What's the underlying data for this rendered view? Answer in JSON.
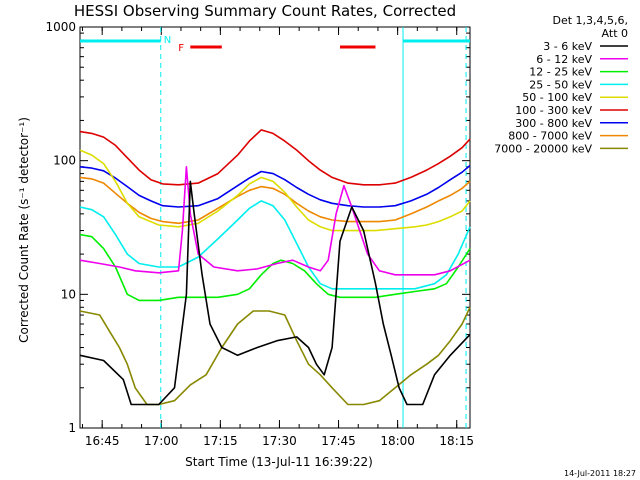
{
  "chart_data": {
    "type": "line",
    "title": "HESSI Observing Summary Count Rates, Corrected",
    "xlabel": "Start Time (13-Jul-11 16:39:22)",
    "ylabel": "Corrected Count Rate (s⁻¹ detector⁻¹)",
    "y_scale": "log",
    "ylim": [
      1,
      1000
    ],
    "xlim_minutes_after_start": [
      0,
      99
    ],
    "x_ticks": [
      {
        "label": "16:45",
        "minute": 5.63
      },
      {
        "label": "17:00",
        "minute": 20.63
      },
      {
        "label": "17:15",
        "minute": 35.63
      },
      {
        "label": "17:30",
        "minute": 50.63
      },
      {
        "label": "17:45",
        "minute": 65.63
      },
      {
        "label": "18:00",
        "minute": 80.63
      },
      {
        "label": "18:15",
        "minute": 95.63
      }
    ],
    "y_ticks": [
      {
        "label": "1",
        "value": 1
      },
      {
        "label": "10",
        "value": 10
      },
      {
        "label": "100",
        "value": 100
      },
      {
        "label": "1000",
        "value": 1000
      }
    ],
    "legend_header": [
      "Det 1,3,4,5,6,",
      "Att 0"
    ],
    "legend_position": "right",
    "date_stamp": "14-Jul-2011 18:27",
    "series": [
      {
        "name": "3 - 6 keV",
        "color": "#000000",
        "points": [
          [
            0,
            3.5
          ],
          [
            6,
            3.2
          ],
          [
            11,
            2.3
          ],
          [
            13,
            1.5
          ],
          [
            20,
            1.5
          ],
          [
            24,
            2
          ],
          [
            27,
            10
          ],
          [
            28,
            70
          ],
          [
            29,
            40
          ],
          [
            31,
            14
          ],
          [
            33,
            6
          ],
          [
            36,
            4
          ],
          [
            40,
            3.5
          ],
          [
            45,
            4
          ],
          [
            50,
            4.5
          ],
          [
            55,
            4.8
          ],
          [
            58,
            4
          ],
          [
            60,
            3
          ],
          [
            62,
            2.5
          ],
          [
            64,
            4
          ],
          [
            66,
            25
          ],
          [
            69,
            45
          ],
          [
            72,
            30
          ],
          [
            75,
            12
          ],
          [
            77,
            6
          ],
          [
            79,
            3.5
          ],
          [
            81,
            2
          ],
          [
            83,
            1.5
          ],
          [
            87,
            1.5
          ],
          [
            90,
            2.5
          ],
          [
            94,
            3.5
          ],
          [
            99,
            5
          ]
        ]
      },
      {
        "name": "6 - 12 keV",
        "color": "#ee00ee",
        "points": [
          [
            0,
            18
          ],
          [
            5,
            17
          ],
          [
            10,
            16
          ],
          [
            14,
            15
          ],
          [
            20,
            14.5
          ],
          [
            25,
            15
          ],
          [
            26,
            30
          ],
          [
            27,
            90
          ],
          [
            28,
            40
          ],
          [
            30,
            20
          ],
          [
            34,
            16
          ],
          [
            40,
            15
          ],
          [
            45,
            15.5
          ],
          [
            50,
            17
          ],
          [
            54,
            18
          ],
          [
            58,
            16
          ],
          [
            61,
            15
          ],
          [
            63,
            18
          ],
          [
            65,
            40
          ],
          [
            67,
            65
          ],
          [
            69,
            45
          ],
          [
            71,
            30
          ],
          [
            73,
            20
          ],
          [
            76,
            15
          ],
          [
            80,
            14
          ],
          [
            86,
            14
          ],
          [
            90,
            14
          ],
          [
            94,
            15
          ],
          [
            99,
            18
          ]
        ]
      },
      {
        "name": "12 - 25 keV",
        "color": "#00ee00",
        "points": [
          [
            0,
            28
          ],
          [
            3,
            27
          ],
          [
            6,
            22
          ],
          [
            9,
            16
          ],
          [
            12,
            10
          ],
          [
            15,
            9
          ],
          [
            20,
            9
          ],
          [
            25,
            9.5
          ],
          [
            30,
            9.5
          ],
          [
            35,
            9.5
          ],
          [
            40,
            10
          ],
          [
            43,
            11
          ],
          [
            46,
            14
          ],
          [
            49,
            17
          ],
          [
            51,
            18
          ],
          [
            54,
            17
          ],
          [
            57,
            15
          ],
          [
            60,
            12
          ],
          [
            63,
            10
          ],
          [
            66,
            9.5
          ],
          [
            70,
            9.5
          ],
          [
            75,
            9.5
          ],
          [
            80,
            10
          ],
          [
            85,
            10.5
          ],
          [
            90,
            11
          ],
          [
            93,
            12
          ],
          [
            96,
            16
          ],
          [
            99,
            22
          ]
        ]
      },
      {
        "name": "25 - 50 keV",
        "color": "#00eeee",
        "points": [
          [
            0,
            45
          ],
          [
            3,
            43
          ],
          [
            6,
            38
          ],
          [
            9,
            28
          ],
          [
            12,
            20
          ],
          [
            15,
            17
          ],
          [
            20,
            16
          ],
          [
            25,
            16
          ],
          [
            30,
            19
          ],
          [
            35,
            26
          ],
          [
            40,
            36
          ],
          [
            43,
            44
          ],
          [
            46,
            50
          ],
          [
            49,
            46
          ],
          [
            52,
            36
          ],
          [
            55,
            24
          ],
          [
            58,
            16
          ],
          [
            61,
            12
          ],
          [
            64,
            11
          ],
          [
            70,
            11
          ],
          [
            75,
            11
          ],
          [
            80,
            11
          ],
          [
            85,
            11
          ],
          [
            90,
            12
          ],
          [
            93,
            14
          ],
          [
            96,
            20
          ],
          [
            99,
            32
          ]
        ]
      },
      {
        "name": "50 - 100 keV",
        "color": "#dddd00",
        "points": [
          [
            0,
            120
          ],
          [
            3,
            110
          ],
          [
            6,
            95
          ],
          [
            9,
            70
          ],
          [
            12,
            48
          ],
          [
            15,
            38
          ],
          [
            20,
            33
          ],
          [
            25,
            32
          ],
          [
            30,
            34
          ],
          [
            35,
            42
          ],
          [
            40,
            55
          ],
          [
            43,
            67
          ],
          [
            46,
            75
          ],
          [
            49,
            70
          ],
          [
            52,
            58
          ],
          [
            55,
            45
          ],
          [
            58,
            36
          ],
          [
            61,
            32
          ],
          [
            64,
            30
          ],
          [
            70,
            30
          ],
          [
            75,
            30
          ],
          [
            80,
            31
          ],
          [
            85,
            32
          ],
          [
            88,
            33
          ],
          [
            91,
            35
          ],
          [
            94,
            38
          ],
          [
            97,
            42
          ],
          [
            99,
            50
          ]
        ]
      },
      {
        "name": "100 - 300 keV",
        "color": "#dd0000",
        "points": [
          [
            0,
            165
          ],
          [
            3,
            160
          ],
          [
            6,
            150
          ],
          [
            9,
            130
          ],
          [
            12,
            105
          ],
          [
            15,
            85
          ],
          [
            18,
            72
          ],
          [
            21,
            67
          ],
          [
            25,
            66
          ],
          [
            30,
            68
          ],
          [
            35,
            80
          ],
          [
            40,
            110
          ],
          [
            43,
            140
          ],
          [
            46,
            170
          ],
          [
            49,
            160
          ],
          [
            52,
            140
          ],
          [
            55,
            120
          ],
          [
            58,
            100
          ],
          [
            61,
            85
          ],
          [
            64,
            75
          ],
          [
            68,
            68
          ],
          [
            72,
            66
          ],
          [
            76,
            66
          ],
          [
            80,
            68
          ],
          [
            84,
            75
          ],
          [
            88,
            85
          ],
          [
            91,
            95
          ],
          [
            94,
            108
          ],
          [
            97,
            125
          ],
          [
            99,
            145
          ]
        ]
      },
      {
        "name": "300 - 800 keV",
        "color": "#0000ee",
        "points": [
          [
            0,
            90
          ],
          [
            3,
            88
          ],
          [
            6,
            84
          ],
          [
            9,
            74
          ],
          [
            12,
            64
          ],
          [
            15,
            55
          ],
          [
            18,
            50
          ],
          [
            21,
            46
          ],
          [
            25,
            45
          ],
          [
            30,
            46
          ],
          [
            35,
            52
          ],
          [
            40,
            65
          ],
          [
            43,
            74
          ],
          [
            46,
            83
          ],
          [
            49,
            80
          ],
          [
            52,
            72
          ],
          [
            55,
            63
          ],
          [
            58,
            56
          ],
          [
            61,
            51
          ],
          [
            64,
            48
          ],
          [
            68,
            46
          ],
          [
            72,
            45
          ],
          [
            76,
            45
          ],
          [
            80,
            46
          ],
          [
            84,
            50
          ],
          [
            88,
            56
          ],
          [
            91,
            63
          ],
          [
            94,
            72
          ],
          [
            97,
            82
          ],
          [
            99,
            92
          ]
        ]
      },
      {
        "name": "800 - 7000 keV",
        "color": "#ee8800",
        "points": [
          [
            0,
            75
          ],
          [
            3,
            73
          ],
          [
            6,
            68
          ],
          [
            9,
            57
          ],
          [
            12,
            48
          ],
          [
            15,
            41
          ],
          [
            18,
            37
          ],
          [
            21,
            35
          ],
          [
            25,
            34
          ],
          [
            30,
            36
          ],
          [
            35,
            44
          ],
          [
            40,
            54
          ],
          [
            43,
            60
          ],
          [
            46,
            64
          ],
          [
            49,
            62
          ],
          [
            52,
            56
          ],
          [
            55,
            48
          ],
          [
            58,
            42
          ],
          [
            61,
            38
          ],
          [
            64,
            36
          ],
          [
            68,
            35
          ],
          [
            72,
            35
          ],
          [
            76,
            35
          ],
          [
            80,
            36
          ],
          [
            84,
            40
          ],
          [
            88,
            45
          ],
          [
            91,
            50
          ],
          [
            94,
            55
          ],
          [
            97,
            62
          ],
          [
            99,
            70
          ]
        ]
      },
      {
        "name": "7000 - 20000 keV",
        "color": "#888800",
        "points": [
          [
            0,
            7.5
          ],
          [
            5,
            7
          ],
          [
            8,
            5
          ],
          [
            10,
            4
          ],
          [
            12,
            3
          ],
          [
            14,
            2
          ],
          [
            17,
            1.5
          ],
          [
            20,
            1.5
          ],
          [
            24,
            1.6
          ],
          [
            28,
            2.1
          ],
          [
            32,
            2.5
          ],
          [
            36,
            4
          ],
          [
            40,
            6
          ],
          [
            44,
            7.5
          ],
          [
            48,
            7.5
          ],
          [
            52,
            7
          ],
          [
            55,
            4.5
          ],
          [
            58,
            3
          ],
          [
            61,
            2.5
          ],
          [
            64,
            2
          ],
          [
            68,
            1.5
          ],
          [
            72,
            1.5
          ],
          [
            76,
            1.6
          ],
          [
            80,
            2
          ],
          [
            84,
            2.5
          ],
          [
            88,
            3
          ],
          [
            91,
            3.5
          ],
          [
            94,
            4.5
          ],
          [
            97,
            6
          ],
          [
            99,
            8
          ]
        ]
      }
    ],
    "annotations": {
      "night_marker_label": "N",
      "flare_marker_label": "F",
      "flare_marker_color": "#ee0000",
      "marker_color": "#00eeee",
      "night_intervals_minutes": [
        [
          0,
          20.5
        ],
        [
          82,
          99
        ]
      ],
      "flare_intervals_minutes": [
        [
          28,
          36
        ],
        [
          66,
          75
        ]
      ],
      "boundary_lines_minutes": [
        20.5,
        82,
        98
      ]
    }
  }
}
